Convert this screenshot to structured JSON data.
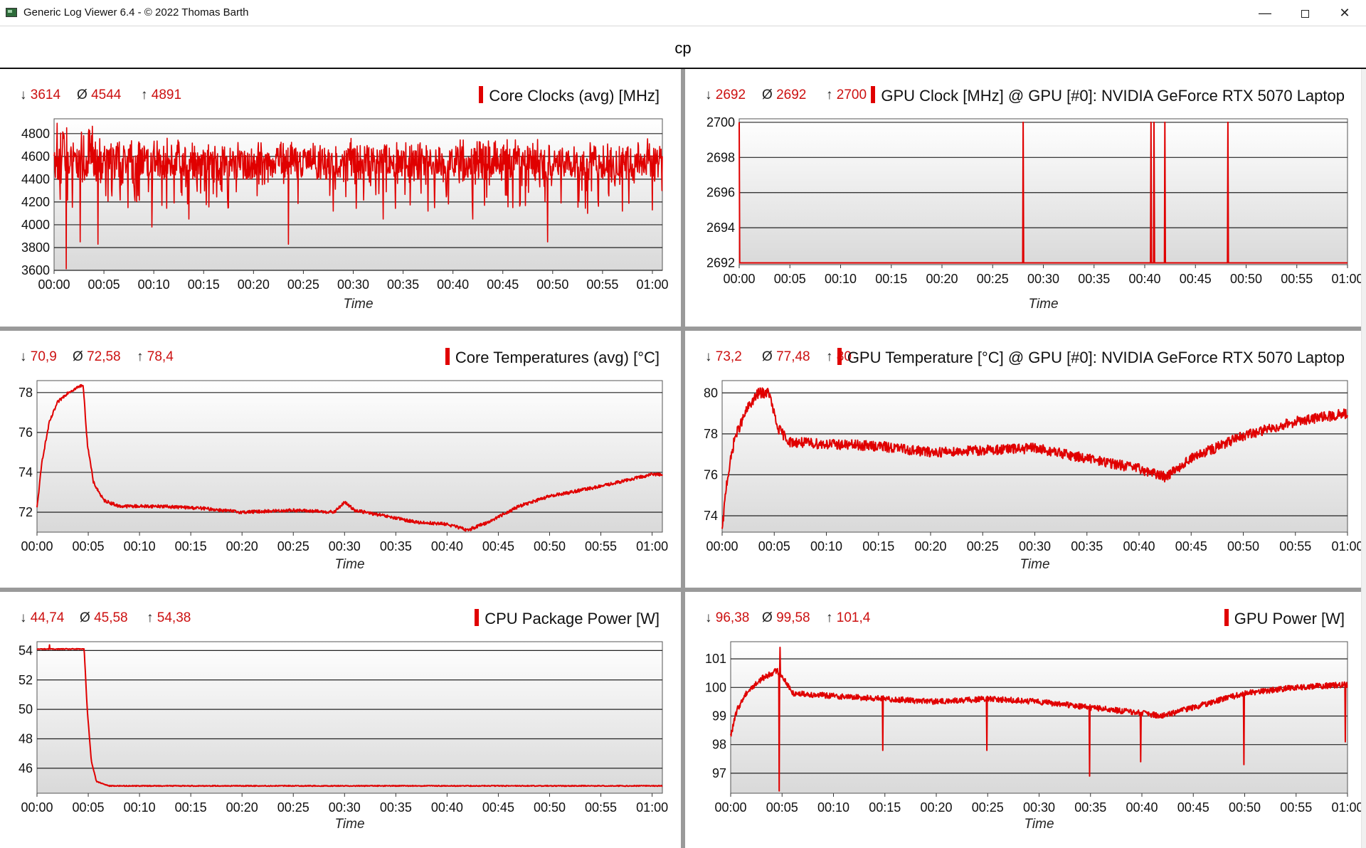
{
  "window": {
    "title": "Generic Log Viewer 6.4 - © 2022 Thomas Barth",
    "minimize": "—",
    "close": "✕",
    "icon": "app-icon"
  },
  "page_title": "cp",
  "chart_data": [
    {
      "type": "line",
      "title": "Core Clocks (avg) [MHz]",
      "xlabel": "Time",
      "stats": {
        "min": "3614",
        "avg": "4544",
        "max": "4891"
      },
      "x_ticks": [
        "00:00",
        "00:05",
        "00:10",
        "00:15",
        "00:20",
        "00:25",
        "00:30",
        "00:35",
        "00:40",
        "00:45",
        "00:50",
        "00:55",
        "01:00"
      ],
      "y_ticks": [
        3600,
        3800,
        4000,
        4200,
        4400,
        4600,
        4800
      ],
      "ylim": [
        3600,
        4930
      ],
      "xlim_minutes": [
        0,
        61
      ],
      "series": [
        {
          "color": "#e00000",
          "profile": "noisy",
          "base": 4550,
          "noise": 170,
          "points": [
            [
              0,
              4550
            ],
            [
              61,
              4550
            ]
          ],
          "spikes": [
            [
              0.3,
              4891
            ],
            [
              1.2,
              3614
            ],
            [
              2.6,
              3850
            ],
            [
              4.4,
              3830
            ],
            [
              7.4,
              4150
            ],
            [
              9.8,
              3980
            ],
            [
              13.5,
              4050
            ],
            [
              17.5,
              4150
            ],
            [
              23.5,
              3830
            ],
            [
              28,
              4120
            ],
            [
              33,
              4050
            ],
            [
              37.5,
              4120
            ],
            [
              42,
              4050
            ],
            [
              46,
              4150
            ],
            [
              49.5,
              3850
            ],
            [
              53.5,
              4100
            ],
            [
              57,
              4120
            ],
            [
              60,
              4130
            ]
          ]
        }
      ]
    },
    {
      "type": "line",
      "title": "GPU Clock [MHz] @ GPU [#0]: NVIDIA GeForce RTX 5070 Laptop",
      "xlabel": "Time",
      "stats": {
        "min": "2692",
        "avg": "2692",
        "max": "2700"
      },
      "x_ticks": [
        "00:00",
        "00:05",
        "00:10",
        "00:15",
        "00:20",
        "00:25",
        "00:30",
        "00:35",
        "00:40",
        "00:45",
        "00:50",
        "00:55",
        "01:00"
      ],
      "y_ticks": [
        2692,
        2694,
        2696,
        2698,
        2700
      ],
      "ylim": [
        2691.9,
        2700.2
      ],
      "xlim_minutes": [
        0,
        60
      ],
      "series": [
        {
          "color": "#e00000",
          "profile": "flat",
          "base": 2692,
          "points": [
            [
              0,
              2692
            ],
            [
              60,
              2692
            ]
          ],
          "spikes": [
            [
              0,
              2700
            ],
            [
              28,
              2700
            ],
            [
              40.6,
              2700
            ],
            [
              40.9,
              2700
            ],
            [
              42,
              2700
            ],
            [
              48.2,
              2700
            ]
          ]
        }
      ]
    },
    {
      "type": "line",
      "title": "Core Temperatures (avg) [°C]",
      "xlabel": "Time",
      "stats": {
        "min": "70,9",
        "avg": "72,58",
        "max": "78,4"
      },
      "x_ticks": [
        "00:00",
        "00:05",
        "00:10",
        "00:15",
        "00:20",
        "00:25",
        "00:30",
        "00:35",
        "00:40",
        "00:45",
        "00:50",
        "00:55",
        "01:00"
      ],
      "y_ticks": [
        72,
        74,
        76,
        78
      ],
      "ylim": [
        71.0,
        78.6
      ],
      "xlim_minutes": [
        0,
        61
      ],
      "series": [
        {
          "color": "#e00000",
          "profile": "smooth",
          "noise": 0.08,
          "points": [
            [
              0,
              72.2
            ],
            [
              0.5,
              74.6
            ],
            [
              1.2,
              76.5
            ],
            [
              2,
              77.5
            ],
            [
              3,
              78
            ],
            [
              4.5,
              78.4
            ],
            [
              4.9,
              75.5
            ],
            [
              5.5,
              73.5
            ],
            [
              6.5,
              72.6
            ],
            [
              8,
              72.3
            ],
            [
              12,
              72.3
            ],
            [
              16,
              72.2
            ],
            [
              20,
              72.0
            ],
            [
              25,
              72.1
            ],
            [
              29,
              72.0
            ],
            [
              30,
              72.5
            ],
            [
              31,
              72.1
            ],
            [
              34,
              71.8
            ],
            [
              37,
              71.5
            ],
            [
              40,
              71.4
            ],
            [
              42,
              71.1
            ],
            [
              44,
              71.5
            ],
            [
              47,
              72.3
            ],
            [
              50,
              72.8
            ],
            [
              55,
              73.3
            ],
            [
              60,
              73.9
            ]
          ],
          "spikes": []
        }
      ]
    },
    {
      "type": "line",
      "title": "GPU Temperature [°C] @ GPU [#0]: NVIDIA GeForce RTX 5070 Laptop",
      "xlabel": "Time",
      "stats": {
        "min": "73,2",
        "avg": "77,48",
        "max": "80"
      },
      "x_ticks": [
        "00:00",
        "00:05",
        "00:10",
        "00:15",
        "00:20",
        "00:25",
        "00:30",
        "00:35",
        "00:40",
        "00:45",
        "00:50",
        "00:55",
        "01:00"
      ],
      "y_ticks": [
        74,
        76,
        78,
        80
      ],
      "ylim": [
        73.2,
        80.6
      ],
      "xlim_minutes": [
        0,
        60
      ],
      "series": [
        {
          "color": "#e00000",
          "profile": "smooth",
          "noise": 0.25,
          "points": [
            [
              0,
              73.2
            ],
            [
              0.4,
              75.5
            ],
            [
              1.2,
              77.8
            ],
            [
              2.5,
              79.3
            ],
            [
              3.5,
              80
            ],
            [
              4.5,
              80
            ],
            [
              5.3,
              78.3
            ],
            [
              6.5,
              77.6
            ],
            [
              10,
              77.5
            ],
            [
              15,
              77.4
            ],
            [
              20,
              77.1
            ],
            [
              25,
              77.2
            ],
            [
              30,
              77.3
            ],
            [
              35,
              76.8
            ],
            [
              40,
              76.3
            ],
            [
              42.5,
              75.9
            ],
            [
              45,
              76.8
            ],
            [
              50,
              77.9
            ],
            [
              55,
              78.6
            ],
            [
              60,
              79.0
            ]
          ],
          "spikes": []
        }
      ]
    },
    {
      "type": "line",
      "title": "CPU Package Power [W]",
      "xlabel": "Time",
      "stats": {
        "min": "44,74",
        "avg": "45,58",
        "max": "54,38"
      },
      "x_ticks": [
        "00:00",
        "00:05",
        "00:10",
        "00:15",
        "00:20",
        "00:25",
        "00:30",
        "00:35",
        "00:40",
        "00:45",
        "00:50",
        "00:55",
        "01:00"
      ],
      "y_ticks": [
        46,
        48,
        50,
        52,
        54
      ],
      "ylim": [
        44.3,
        54.6
      ],
      "xlim_minutes": [
        0,
        61
      ],
      "series": [
        {
          "color": "#e00000",
          "profile": "smooth",
          "noise": 0.03,
          "points": [
            [
              0,
              54.1
            ],
            [
              4.6,
              54.1
            ],
            [
              4.9,
              50
            ],
            [
              5.3,
              46.5
            ],
            [
              5.8,
              45.1
            ],
            [
              7,
              44.8
            ],
            [
              61,
              44.8
            ]
          ],
          "spikes": [
            [
              1.2,
              54.38
            ]
          ]
        }
      ]
    },
    {
      "type": "line",
      "title": "GPU Power [W]",
      "xlabel": "Time",
      "stats": {
        "min": "96,38",
        "avg": "99,58",
        "max": "101,4"
      },
      "x_ticks": [
        "00:00",
        "00:05",
        "00:10",
        "00:15",
        "00:20",
        "00:25",
        "00:30",
        "00:35",
        "00:40",
        "00:45",
        "00:50",
        "00:55",
        "01:00"
      ],
      "y_ticks": [
        97,
        98,
        99,
        100,
        101
      ],
      "ylim": [
        96.3,
        101.6
      ],
      "xlim_minutes": [
        0,
        60
      ],
      "series": [
        {
          "color": "#e00000",
          "profile": "smooth",
          "noise": 0.1,
          "points": [
            [
              0,
              98.3
            ],
            [
              0.6,
              99.2
            ],
            [
              1.5,
              99.8
            ],
            [
              3,
              100.3
            ],
            [
              4.5,
              100.6
            ],
            [
              5.2,
              100.3
            ],
            [
              6,
              99.8
            ],
            [
              10,
              99.7
            ],
            [
              15,
              99.6
            ],
            [
              20,
              99.5
            ],
            [
              25,
              99.6
            ],
            [
              30,
              99.5
            ],
            [
              35,
              99.3
            ],
            [
              40,
              99.1
            ],
            [
              42,
              99.0
            ],
            [
              45,
              99.3
            ],
            [
              50,
              99.8
            ],
            [
              55,
              100.0
            ],
            [
              60,
              100.1
            ]
          ],
          "spikes": [
            [
              4.7,
              96.38
            ],
            [
              4.8,
              101.4
            ],
            [
              14.8,
              97.8
            ],
            [
              24.9,
              97.8
            ],
            [
              34.9,
              96.9
            ],
            [
              39.9,
              97.4
            ],
            [
              49.9,
              97.3
            ],
            [
              59.8,
              98.1
            ]
          ]
        }
      ]
    }
  ]
}
